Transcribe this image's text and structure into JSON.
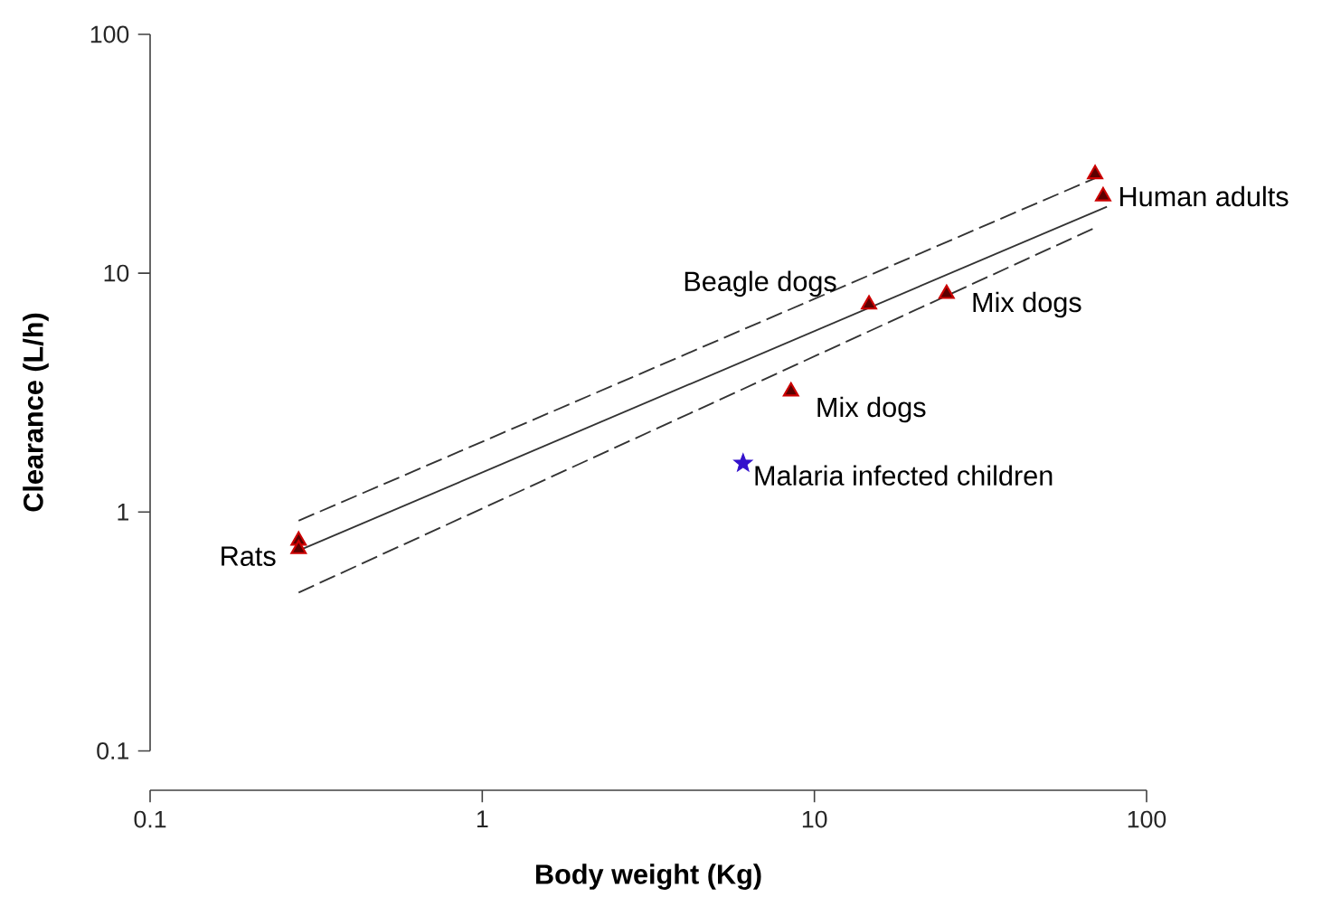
{
  "chart_data": {
    "type": "scatter",
    "xlabel": "Body weight (Kg)",
    "ylabel": "Clearance (L/h)",
    "log": "xy",
    "xlim": [
      0.1,
      100
    ],
    "ylim": [
      0.1,
      100
    ],
    "xticks": [
      0.1,
      1,
      10,
      100
    ],
    "yticks": [
      0.1,
      1,
      10,
      100
    ],
    "series": [
      {
        "color": "#cc0000",
        "marker": "triangle",
        "x": [
          0.28,
          0.28,
          14.6,
          25,
          8.5,
          70,
          74
        ],
        "values": [
          0.76,
          0.7,
          7.4,
          8.2,
          3.2,
          26,
          21
        ]
      },
      {
        "type": "scatter",
        "color": "#3311cc",
        "marker": "star",
        "x": [
          6.1
        ],
        "values": [
          1.6
        ]
      },
      {
        "type": "line",
        "color": "#333333",
        "line_style": "solid",
        "x": [
          0.28,
          76
        ],
        "values": [
          0.69,
          19
        ]
      },
      {
        "type": "line",
        "color": "#333333",
        "line_style": "dashed",
        "x": [
          0.28,
          70
        ],
        "values": [
          0.92,
          25
        ]
      },
      {
        "type": "line",
        "color": "#333333",
        "line_style": "dashed",
        "x": [
          0.28,
          70
        ],
        "values": [
          0.46,
          15.5
        ]
      }
    ],
    "annotations": [
      {
        "text": "Rats",
        "x": 0.28,
        "y": 0.7
      },
      {
        "text": "Human adults",
        "x": 74,
        "y": 21
      },
      {
        "text": "Beagle dogs",
        "x": 14.6,
        "y": 7.4
      },
      {
        "text": "Mix dogs",
        "x": 25,
        "y": 8.2
      },
      {
        "text": "Mix dogs",
        "x": 8.5,
        "y": 3.2
      },
      {
        "text": "Malaria infected children",
        "x": 6.1,
        "y": 1.6
      }
    ]
  }
}
